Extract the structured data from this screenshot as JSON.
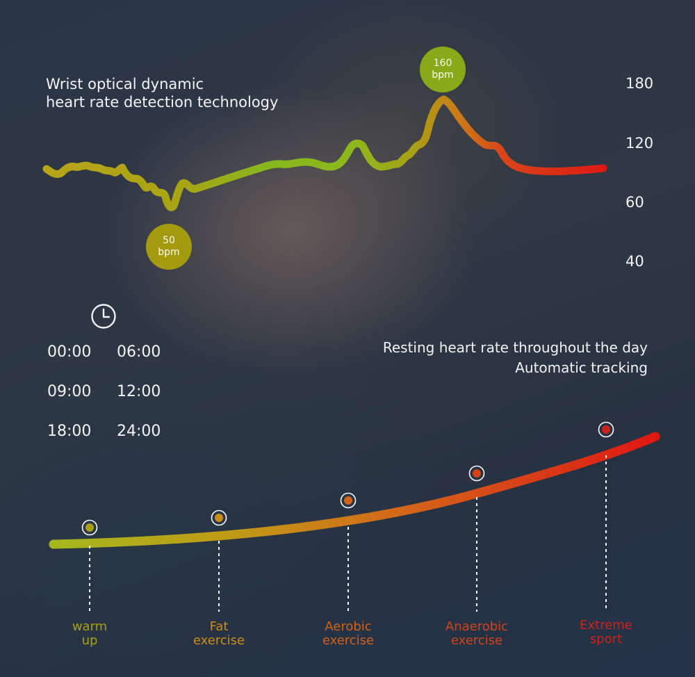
{
  "intro": {
    "line1": "Wrist optical dynamic",
    "line2": "heart rate detection technology"
  },
  "axis": {
    "ticks": [
      "180",
      "120",
      "60",
      "40"
    ]
  },
  "badges": {
    "min": {
      "value": "50",
      "unit": "bpm",
      "color": "#a49a10"
    },
    "max": {
      "value": "160",
      "unit": "bpm",
      "color": "#86aa18"
    }
  },
  "schedule": {
    "icon": "clock-icon",
    "times": [
      "00:00",
      "06:00",
      "09:00",
      "12:00",
      "18:00",
      "24:00"
    ]
  },
  "resting": {
    "line1": "Resting heart rate throughout the day",
    "line2": "Automatic tracking"
  },
  "zones": [
    {
      "line1": "warm",
      "line2": "up",
      "color": "#a8a012"
    },
    {
      "line1": "Fat",
      "line2": "exercise",
      "color": "#c88d16"
    },
    {
      "line1": "Aerobic",
      "line2": "exercise",
      "color": "#d06318"
    },
    {
      "line1": "Anaerobic",
      "line2": "exercise",
      "color": "#d24418"
    },
    {
      "line1": "Extreme",
      "line2": "sport",
      "color": "#cc2418"
    }
  ],
  "colors": {
    "low": "#b8a418",
    "mid": "#86b81c",
    "high": "#dd1a12"
  }
}
